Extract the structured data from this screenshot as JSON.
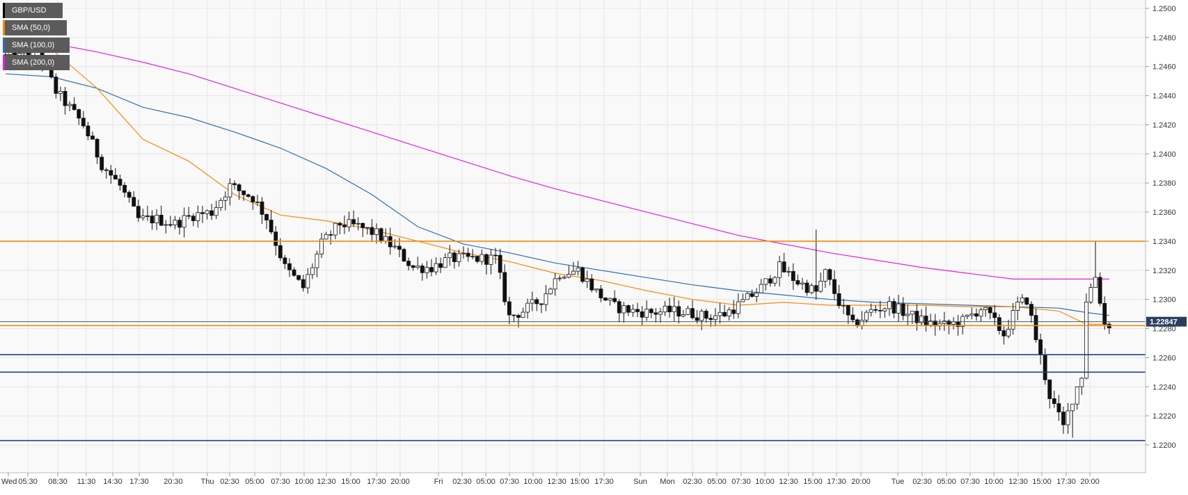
{
  "chart_data": {
    "type": "candlestick",
    "symbol": "GBP/USD",
    "ylim": [
      1.2183,
      1.251
    ],
    "y_ticks": [
      "1.2500",
      "1.2480",
      "1.2460",
      "1.2440",
      "1.2420",
      "1.2400",
      "1.2380",
      "1.2360",
      "1.2340",
      "1.2320",
      "1.2300",
      "1.2280",
      "1.2260",
      "1.2240",
      "1.2220",
      "1.2200"
    ],
    "x_ticks": [
      "Wed",
      "05:30",
      "08:30",
      "11:30",
      "14:30",
      "17:30",
      "20:30",
      "Thu",
      "02:30",
      "05:00",
      "07:30",
      "10:00",
      "12:30",
      "15:00",
      "17:30",
      "20:00",
      "Fri",
      "02:30",
      "05:00",
      "07:30",
      "10:00",
      "12:30",
      "15:00",
      "17:30",
      "Sun",
      "Mon",
      "02:30",
      "05:00",
      "07:30",
      "10:00",
      "12:30",
      "15:00",
      "17:30",
      "20:00",
      "Tue",
      "02:30",
      "05:00",
      "07:30",
      "10:00",
      "12:30",
      "15:00",
      "17:30",
      "20:00"
    ],
    "last_price": "1.22847",
    "legend": [
      {
        "label": "GBP/USD",
        "color": "#000000"
      },
      {
        "label": "SMA (50,0)",
        "color": "#f58a07"
      },
      {
        "label": "SMA (100,0)",
        "color": "#2e6db4"
      },
      {
        "label": "SMA (200,0)",
        "color": "#e020e0"
      }
    ],
    "levels": [
      {
        "value": 1.234,
        "color": "#f58a07"
      },
      {
        "value": 1.2282,
        "color": "#f58a07"
      },
      {
        "value": 1.2262,
        "color": "#1f3f8f"
      },
      {
        "value": 1.225,
        "color": "#1f3f8f"
      },
      {
        "value": 1.2203,
        "color": "#1f3f8f"
      }
    ],
    "anchors": [
      [
        0,
        1.2468
      ],
      [
        3,
        1.2465
      ],
      [
        8,
        1.2472
      ],
      [
        12,
        1.2443
      ],
      [
        18,
        1.242
      ],
      [
        22,
        1.2393
      ],
      [
        26,
        1.2378
      ],
      [
        30,
        1.2355
      ],
      [
        34,
        1.2355
      ],
      [
        38,
        1.2352
      ],
      [
        42,
        1.2358
      ],
      [
        46,
        1.236
      ],
      [
        50,
        1.2378
      ],
      [
        55,
        1.237
      ],
      [
        58,
        1.2356
      ],
      [
        62,
        1.2322
      ],
      [
        66,
        1.2308
      ],
      [
        70,
        1.2338
      ],
      [
        74,
        1.2352
      ],
      [
        78,
        1.235
      ],
      [
        82,
        1.2345
      ],
      [
        86,
        1.2335
      ],
      [
        90,
        1.2322
      ],
      [
        94,
        1.2322
      ],
      [
        98,
        1.2328
      ],
      [
        104,
        1.2328
      ],
      [
        108,
        1.2328
      ],
      [
        111,
        1.2288
      ],
      [
        114,
        1.2292
      ],
      [
        118,
        1.23
      ],
      [
        122,
        1.2318
      ],
      [
        126,
        1.232
      ],
      [
        130,
        1.2305
      ],
      [
        134,
        1.2295
      ],
      [
        138,
        1.2292
      ],
      [
        142,
        1.2291
      ],
      [
        146,
        1.2292
      ],
      [
        150,
        1.2291
      ],
      [
        154,
        1.2288
      ],
      [
        158,
        1.229
      ],
      [
        162,
        1.2298
      ],
      [
        166,
        1.2308
      ],
      [
        170,
        1.2322
      ],
      [
        174,
        1.2312
      ],
      [
        178,
        1.2305
      ],
      [
        180,
        1.2318
      ],
      [
        183,
        1.2298
      ],
      [
        186,
        1.2282
      ],
      [
        190,
        1.2292
      ],
      [
        194,
        1.2296
      ],
      [
        198,
        1.229
      ],
      [
        202,
        1.2284
      ],
      [
        206,
        1.2282
      ],
      [
        210,
        1.2285
      ],
      [
        214,
        1.2294
      ],
      [
        216,
        1.2288
      ],
      [
        219,
        1.2276
      ],
      [
        222,
        1.2296
      ],
      [
        224,
        1.23
      ],
      [
        227,
        1.226
      ],
      [
        229,
        1.2234
      ],
      [
        232,
        1.2212
      ],
      [
        234,
        1.2232
      ],
      [
        236,
        1.2248
      ],
      [
        237,
        1.23
      ],
      [
        239,
        1.2316
      ],
      [
        241,
        1.2283
      ]
    ],
    "sma50": [
      [
        0,
        1.2468
      ],
      [
        10,
        1.2472
      ],
      [
        20,
        1.2445
      ],
      [
        30,
        1.241
      ],
      [
        40,
        1.2395
      ],
      [
        50,
        1.2372
      ],
      [
        60,
        1.2358
      ],
      [
        70,
        1.2354
      ],
      [
        80,
        1.2348
      ],
      [
        90,
        1.234
      ],
      [
        100,
        1.2332
      ],
      [
        110,
        1.2326
      ],
      [
        120,
        1.2318
      ],
      [
        130,
        1.2313
      ],
      [
        140,
        1.2306
      ],
      [
        150,
        1.23
      ],
      [
        160,
        1.2296
      ],
      [
        170,
        1.2298
      ],
      [
        180,
        1.2296
      ],
      [
        190,
        1.2296
      ],
      [
        200,
        1.2296
      ],
      [
        210,
        1.2295
      ],
      [
        220,
        1.2295
      ],
      [
        230,
        1.2292
      ],
      [
        236,
        1.2283
      ],
      [
        241,
        1.2283
      ]
    ],
    "sma100": [
      [
        0,
        1.2455
      ],
      [
        10,
        1.2453
      ],
      [
        20,
        1.2445
      ],
      [
        30,
        1.2432
      ],
      [
        40,
        1.2425
      ],
      [
        50,
        1.2415
      ],
      [
        60,
        1.2404
      ],
      [
        70,
        1.239
      ],
      [
        80,
        1.2372
      ],
      [
        90,
        1.235
      ],
      [
        100,
        1.2338
      ],
      [
        110,
        1.2332
      ],
      [
        120,
        1.2325
      ],
      [
        130,
        1.232
      ],
      [
        140,
        1.2315
      ],
      [
        150,
        1.231
      ],
      [
        160,
        1.2306
      ],
      [
        170,
        1.2303
      ],
      [
        180,
        1.23
      ],
      [
        190,
        1.2298
      ],
      [
        200,
        1.2297
      ],
      [
        210,
        1.2296
      ],
      [
        220,
        1.2295
      ],
      [
        230,
        1.2294
      ],
      [
        236,
        1.2291
      ],
      [
        241,
        1.2289
      ]
    ],
    "sma200": [
      [
        0,
        1.2478
      ],
      [
        10,
        1.2476
      ],
      [
        20,
        1.247
      ],
      [
        30,
        1.2463
      ],
      [
        40,
        1.2455
      ],
      [
        50,
        1.2445
      ],
      [
        60,
        1.2435
      ],
      [
        70,
        1.2425
      ],
      [
        80,
        1.2415
      ],
      [
        90,
        1.2405
      ],
      [
        100,
        1.2395
      ],
      [
        110,
        1.2385
      ],
      [
        120,
        1.2376
      ],
      [
        130,
        1.2368
      ],
      [
        140,
        1.236
      ],
      [
        150,
        1.2352
      ],
      [
        160,
        1.2344
      ],
      [
        170,
        1.2338
      ],
      [
        180,
        1.2332
      ],
      [
        190,
        1.2327
      ],
      [
        200,
        1.2322
      ],
      [
        210,
        1.2318
      ],
      [
        220,
        1.2314
      ],
      [
        230,
        1.2314
      ],
      [
        236,
        1.2314
      ],
      [
        241,
        1.2314
      ]
    ]
  }
}
